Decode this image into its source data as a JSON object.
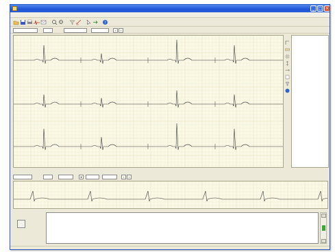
{
  "window": {
    "title": ""
  },
  "menu": [],
  "toolbar": {
    "icons": [
      "open-icon",
      "save-icon",
      "print-icon",
      "ecg-icon",
      "email-icon",
      "zoom-in-icon",
      "zoom-out-icon",
      "filter-icon",
      "measure-icon",
      "cursor-icon",
      "arrow-icon",
      "help-icon"
    ]
  },
  "subbar": {
    "fields": []
  },
  "ecg": {
    "leads": [],
    "colors": {
      "background": "#faf8e6",
      "grid": "#e6dcb4",
      "trace": "#3a3a3a"
    }
  },
  "params": {
    "rows": []
  },
  "rhythm": {
    "label": ""
  },
  "interpretation": {
    "label": "",
    "lines": []
  },
  "statusbar": {
    "left": "",
    "middle": "",
    "right": ""
  }
}
